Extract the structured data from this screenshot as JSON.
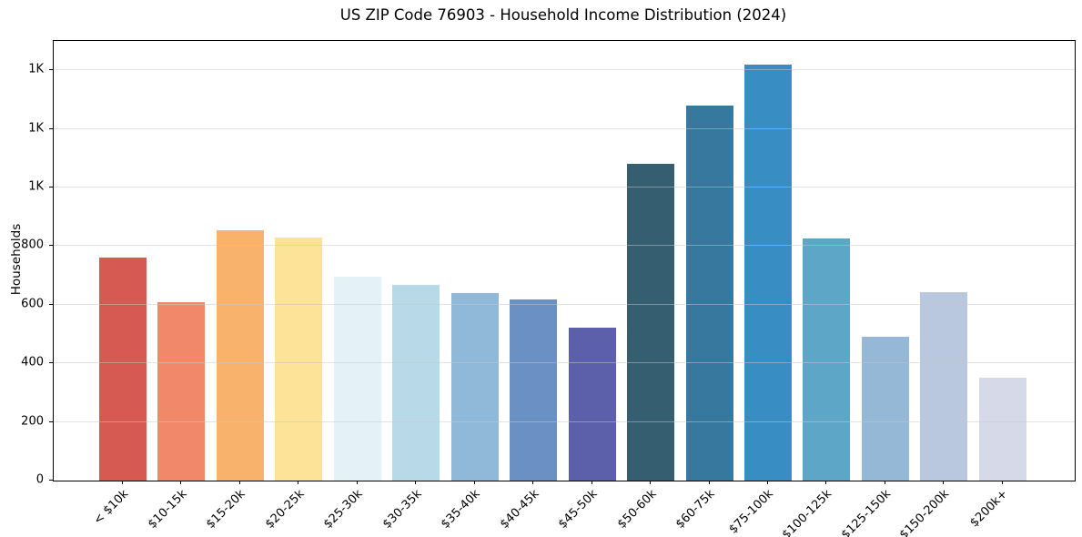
{
  "chart_data": {
    "type": "bar",
    "title": "US ZIP Code 76903 - Household Income Distribution (2024)",
    "xlabel": "",
    "ylabel": "Households",
    "ylim": [
      0,
      1500
    ],
    "grid": "horizontal",
    "legend": "none",
    "categories": [
      "< $10k",
      "$10-15k",
      "$15-20k",
      "$20-25k",
      "$25-30k",
      "$30-35k",
      "$35-40k",
      "$40-45k",
      "$45-50k",
      "$50-60k",
      "$60-75k",
      "$75-100k",
      "$100-125k",
      "$125-150k",
      "$150-200k",
      "$200k+"
    ],
    "values": [
      760,
      610,
      853,
      828,
      695,
      667,
      640,
      618,
      523,
      1080,
      1280,
      1420,
      825,
      492,
      643,
      350
    ],
    "bar_colors": [
      "#d65a52",
      "#f2886a",
      "#f9b26b",
      "#fde398",
      "#e4f1f6",
      "#b8dae8",
      "#90b8d8",
      "#6b90c3",
      "#5c60ab",
      "#355f70",
      "#36789e",
      "#388dc3",
      "#5ea6c8",
      "#94b8d6",
      "#b9c8de",
      "#d6d9e7"
    ],
    "y_ticks": [
      {
        "value": 0,
        "label": "0"
      },
      {
        "value": 200,
        "label": "200"
      },
      {
        "value": 400,
        "label": "400"
      },
      {
        "value": 600,
        "label": "600"
      },
      {
        "value": 800,
        "label": "800"
      },
      {
        "value": 1000,
        "label": "1K"
      },
      {
        "value": 1200,
        "label": "1K"
      },
      {
        "value": 1400,
        "label": "1K"
      }
    ]
  }
}
